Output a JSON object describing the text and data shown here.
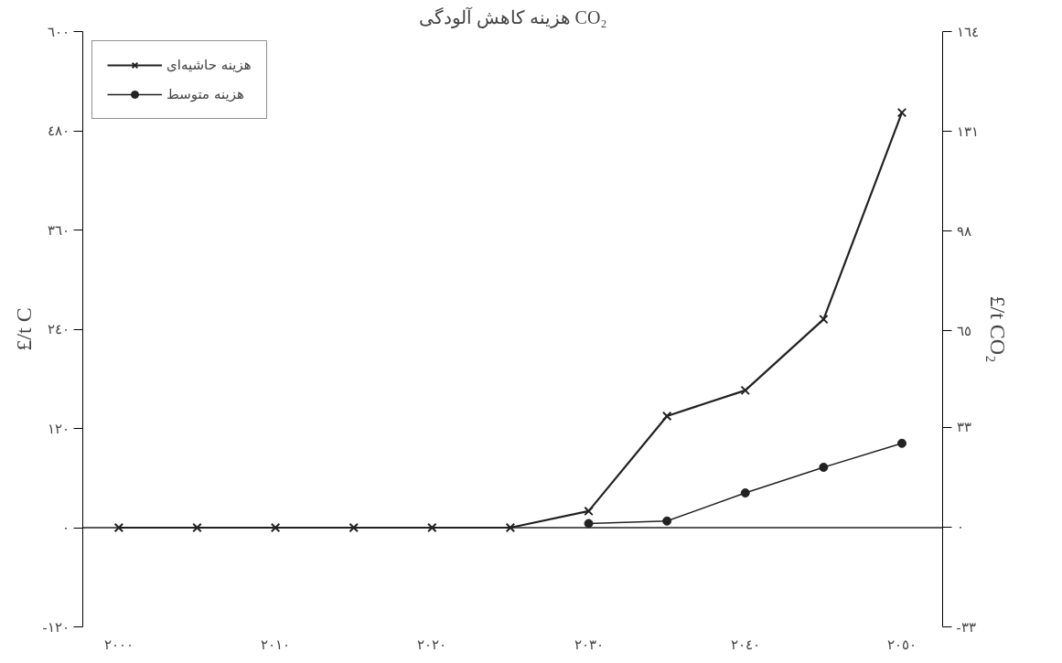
{
  "chart_data": {
    "type": "line",
    "title": "هزینه کاهش آلودگی CO₂",
    "ylabel": "£/t C",
    "y2label": "£/t CO₂",
    "x": [
      2000,
      2005,
      2010,
      2015,
      2020,
      2025,
      2030,
      2035,
      2040,
      2045,
      2050
    ],
    "series": [
      {
        "name": "هزینه حاشیه‌ای",
        "color": "#222222",
        "marker": "cross",
        "values": [
          0,
          0,
          0,
          0,
          0,
          0,
          20,
          135,
          166,
          252,
          502
        ]
      },
      {
        "name": "هزینه متوسط",
        "color": "#222222",
        "marker": "circle",
        "values": [
          null,
          null,
          null,
          null,
          null,
          null,
          5,
          8,
          42,
          73,
          102
        ]
      }
    ],
    "xlim": [
      1997.7,
      2052.6
    ],
    "xticks": [
      {
        "value": 2000,
        "label": "٢٠٠٠"
      },
      {
        "value": 2010,
        "label": "٢٠١٠"
      },
      {
        "value": 2020,
        "label": "٢٠٢٠"
      },
      {
        "value": 2030,
        "label": "٢٠٣٠"
      },
      {
        "value": 2040,
        "label": "٢٠٤٠"
      },
      {
        "value": 2050,
        "label": "٢٠٥٠"
      }
    ],
    "ylim": [
      -120,
      600
    ],
    "yticks": [
      {
        "value": -120,
        "label": "-١٢٠"
      },
      {
        "value": 0,
        "label": "٠"
      },
      {
        "value": 120,
        "label": "١٢٠"
      },
      {
        "value": 240,
        "label": "٢٤٠"
      },
      {
        "value": 360,
        "label": "٣٦٠"
      },
      {
        "value": 480,
        "label": "٤٨٠"
      },
      {
        "value": 600,
        "label": "٦٠٠"
      }
    ],
    "y2lim": [
      -33,
      164
    ],
    "y2ticks": [
      {
        "value": -33,
        "label": "-٣٣"
      },
      {
        "value": 0,
        "label": "٠"
      },
      {
        "value": 33,
        "label": "٣٣"
      },
      {
        "value": 65,
        "label": "٦٥"
      },
      {
        "value": 98,
        "label": "٩٨"
      },
      {
        "value": 131,
        "label": "١٣١"
      },
      {
        "value": 164,
        "label": "١٦٤"
      }
    ],
    "ref_lines": [
      {
        "axis": "y",
        "value": 0,
        "color": "#222222"
      }
    ],
    "grid": false,
    "legend": "top left"
  }
}
